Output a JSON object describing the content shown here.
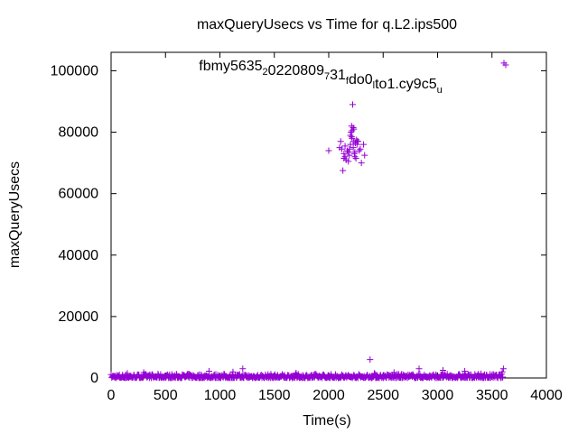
{
  "chart_data": {
    "type": "scatter",
    "title": "maxQueryUsecs vs Time for q.L2.ips500",
    "xlabel": "Time(s)",
    "ylabel": "maxQueryUsecs",
    "xlim": [
      0,
      4000
    ],
    "ylim": [
      0,
      106000
    ],
    "xticks": [
      0,
      500,
      1000,
      1500,
      2000,
      2500,
      3000,
      3500,
      4000
    ],
    "yticks": [
      0,
      20000,
      40000,
      60000,
      80000,
      100000
    ],
    "grid": false,
    "marker": "plus",
    "color": "#9400d3",
    "legend": {
      "placement": "top-center",
      "parts": [
        {
          "text": "fbmy5635",
          "sub": false
        },
        {
          "text": "2",
          "sub": true
        },
        {
          "text": "0220809",
          "sub": false
        },
        {
          "text": "7",
          "sub": true
        },
        {
          "text": "31",
          "sub": false
        },
        {
          "text": "f",
          "sub": true
        },
        {
          "text": "do0",
          "sub": false
        },
        {
          "text": "l",
          "sub": true
        },
        {
          "text": "to1.cy9c5",
          "sub": false
        },
        {
          "text": "u",
          "sub": true
        }
      ]
    },
    "series": [
      {
        "x": [
          2000,
          2100,
          2110,
          2120,
          2130,
          2140,
          2150,
          2160,
          2170,
          2180,
          2190,
          2200,
          2205,
          2210,
          2215,
          2220,
          2225,
          2230,
          2235,
          2240,
          2245,
          2250,
          2255,
          2260,
          2270,
          2280,
          2290,
          2300,
          2320,
          2330,
          2230,
          2200,
          2150,
          2180,
          2240,
          2210,
          2260,
          2140,
          2190,
          2225,
          2215,
          2380,
          2420,
          2440,
          1120,
          1210,
          900,
          2830,
          3610,
          3605,
          3595,
          150,
          300,
          700,
          1700,
          2600,
          3050,
          3250,
          3400
        ],
        "y": [
          74000,
          75000,
          77000,
          74500,
          67500,
          73000,
          72000,
          71000,
          74000,
          73500,
          72500,
          76000,
          80000,
          82000,
          78000,
          89000,
          75000,
          77000,
          73000,
          72000,
          76500,
          71500,
          77500,
          76000,
          77000,
          74000,
          74500,
          70000,
          76000,
          72500,
          81000,
          79000,
          75500,
          70500,
          73500,
          78500,
          77000,
          71500,
          74500,
          81500,
          80500,
          6000,
          1500,
          1000,
          2000,
          3000,
          2200,
          3000,
          102500,
          3000,
          2000,
          1500,
          1800,
          1200,
          1600,
          1800,
          2500,
          2200,
          1400
        ]
      }
    ],
    "baseline_band": {
      "x_start": 0,
      "x_end": 3600,
      "y_min": 50,
      "y_max": 1300,
      "count": 700
    }
  }
}
